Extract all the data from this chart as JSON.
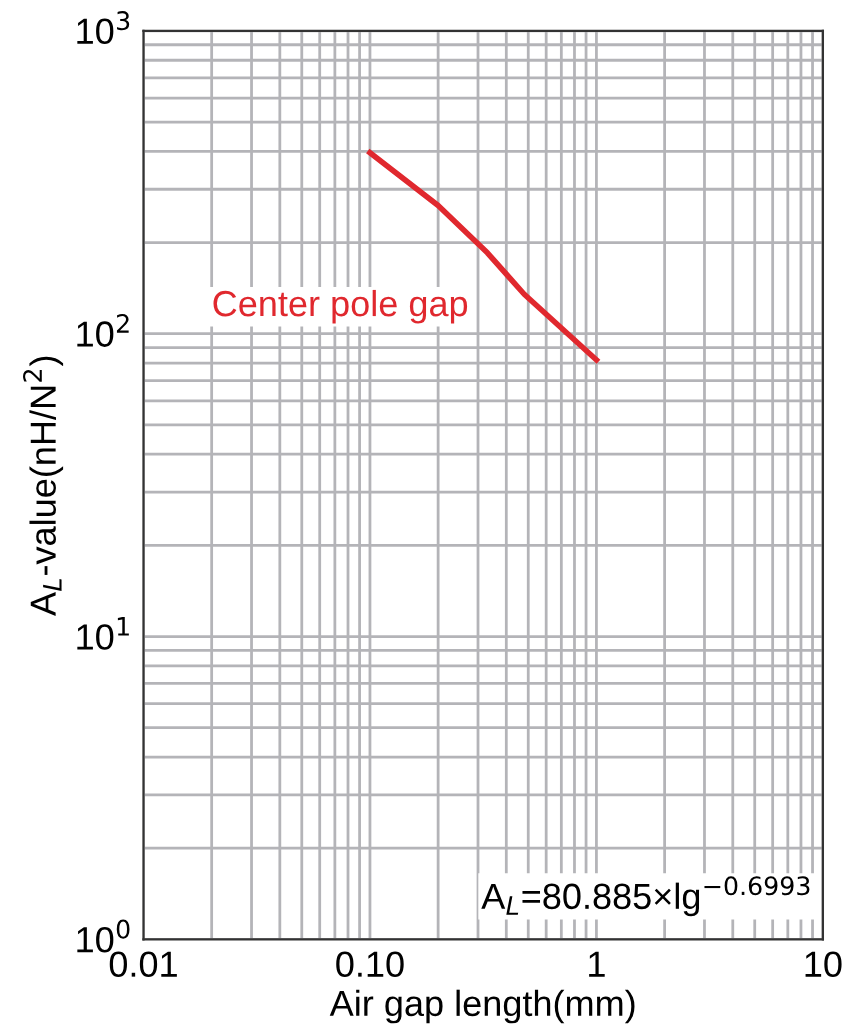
{
  "chart_data": {
    "type": "line",
    "xlabel": "Air gap length(mm)",
    "ylabel": "A$_{L}$-value(nH/N$^{2}$)",
    "log": "xy",
    "grid": true,
    "legend": false,
    "marker": "none",
    "line_style": "solid",
    "xlim": [
      0.01,
      10
    ],
    "ylim": [
      1,
      1000
    ],
    "xticks": [
      0.01,
      {
        "value": 0.1,
        "label": "0.10"
      },
      1,
      10
    ],
    "yticks": [
      {
        "value": 1,
        "label": "10$^{0}$"
      },
      {
        "value": 10,
        "label": "10$^{1}$"
      },
      {
        "value": 100,
        "label": "10$^{2}$"
      },
      {
        "value": 1000,
        "label": "10$^{3}$"
      }
    ],
    "series": [
      {
        "name": "Center pole gap",
        "color": "#e0282e",
        "x": [
          0.1,
          0.2,
          0.33,
          0.48,
          1.0
        ],
        "values": [
          396,
          265,
          185,
          135,
          82
        ]
      }
    ],
    "annotations": [
      "A$_{L}$=80.885×lg$^{−0.6993}$"
    ]
  }
}
